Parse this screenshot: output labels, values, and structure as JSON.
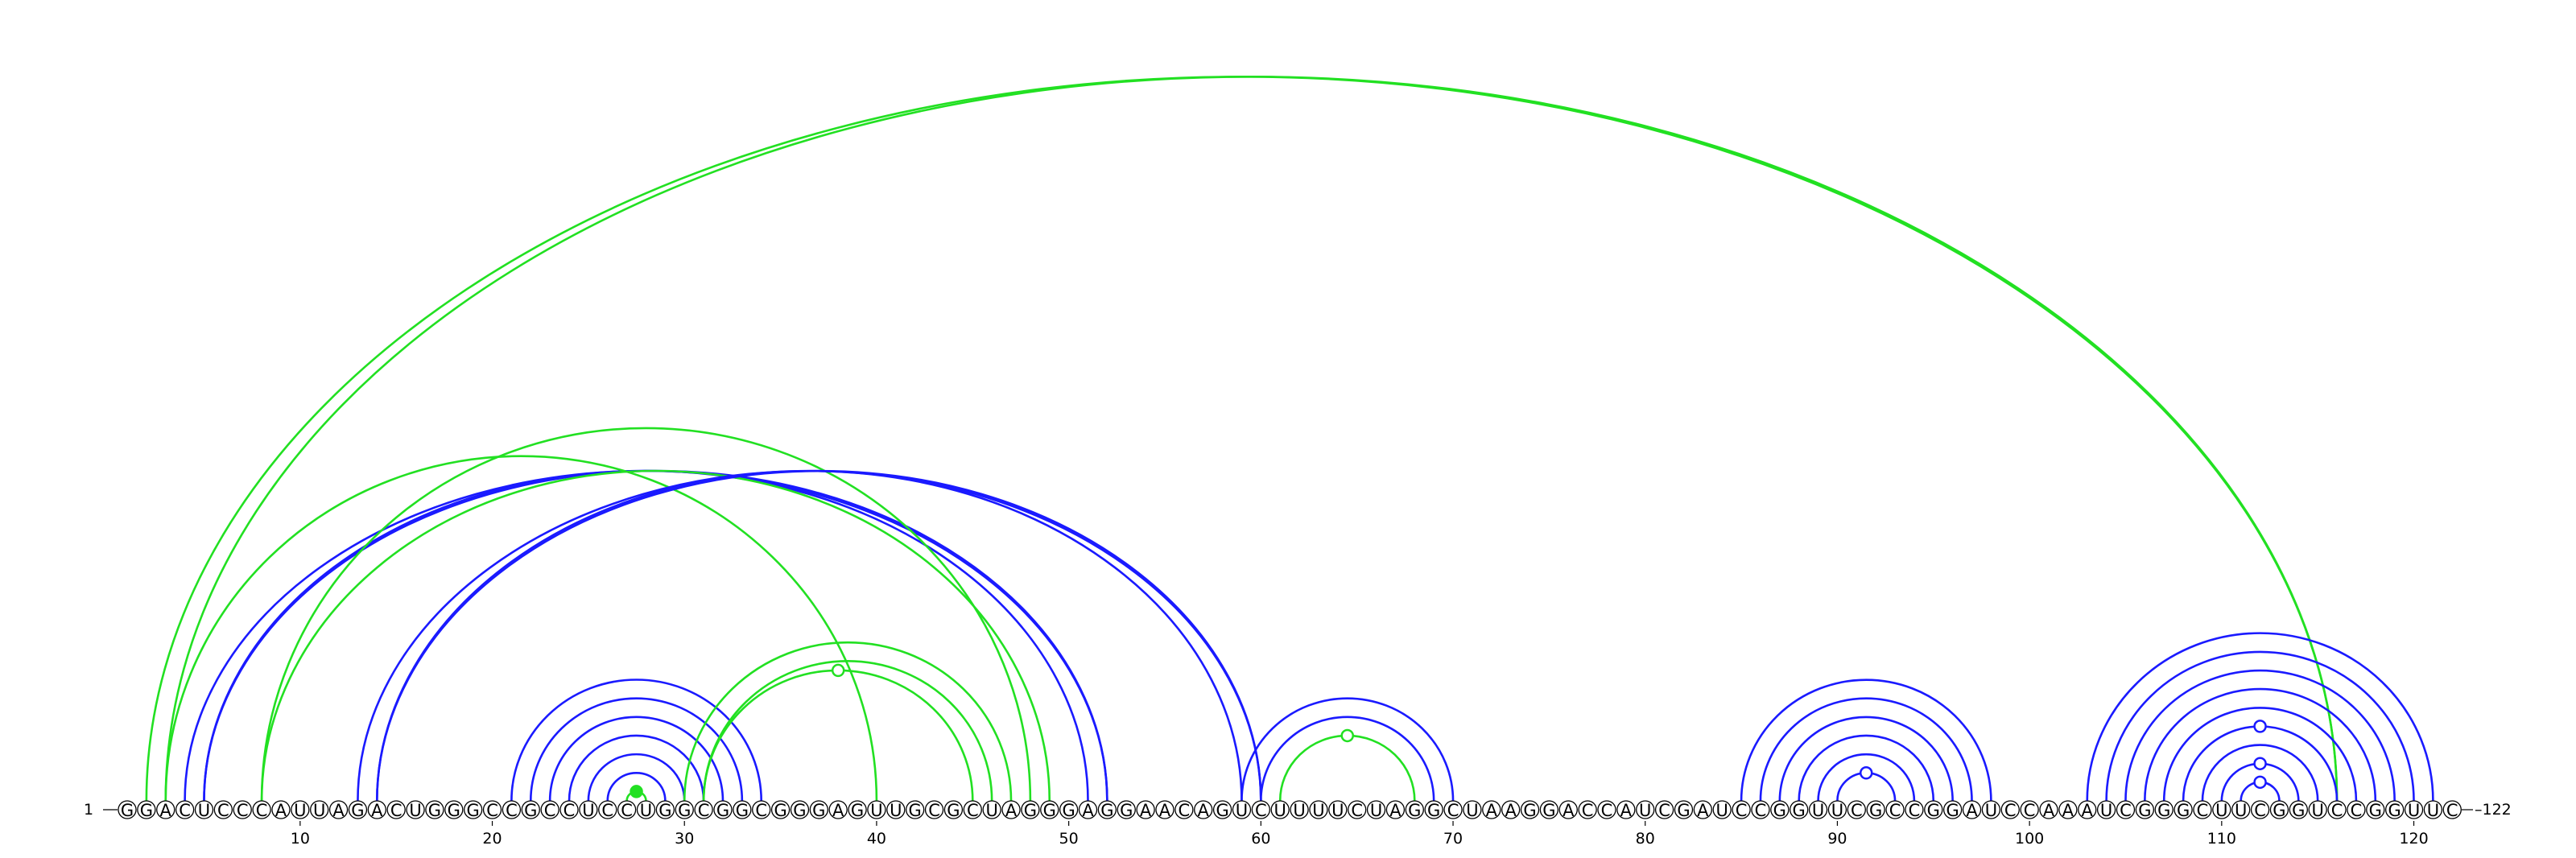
{
  "sequence": "GGACUCCCAUUAGACUGGGCCGCCUCCUGGCGGCGGGAGUUGCGCUAGGGAGGAACAGUCUUUUCUAGGCUAAGGACCAUCGAUCCGGUUCGCCGGAUCCAAAUCGGGCUUCGGUCCGGUUC",
  "start_label": "1",
  "end_label": "122",
  "axis_ticks": [
    10,
    20,
    30,
    40,
    50,
    60,
    70,
    80,
    90,
    100,
    110,
    120
  ],
  "colors": {
    "blue": "#1a1aff",
    "green": "#22e022"
  },
  "arc_groups": [
    {
      "color": "green",
      "pairs": [
        [
          2,
          116
        ],
        [
          3,
          116
        ]
      ]
    },
    {
      "color": "blue",
      "pairs": [
        [
          4,
          52
        ],
        [
          5,
          52
        ],
        [
          5,
          51
        ]
      ]
    },
    {
      "color": "green",
      "pairs": [
        [
          3,
          40
        ]
      ]
    },
    {
      "color": "green",
      "pairs": [
        [
          8,
          49
        ],
        [
          8,
          48
        ]
      ]
    },
    {
      "color": "blue",
      "pairs": [
        [
          13,
          60
        ],
        [
          14,
          60
        ],
        [
          14,
          59
        ]
      ]
    },
    {
      "color": "blue",
      "pairs": [
        [
          21,
          34
        ],
        [
          22,
          33
        ],
        [
          23,
          32
        ],
        [
          24,
          31
        ],
        [
          25,
          30
        ],
        [
          26,
          29
        ]
      ]
    },
    {
      "color": "green",
      "pairs": [
        [
          27,
          28
        ]
      ]
    },
    {
      "color": "green",
      "pairs": [
        [
          30,
          47
        ],
        [
          31,
          46
        ]
      ]
    },
    {
      "color": "green",
      "pairs": [
        [
          31,
          45
        ]
      ]
    },
    {
      "color": "blue",
      "pairs": [
        [
          59,
          70
        ],
        [
          60,
          69
        ]
      ]
    },
    {
      "color": "green",
      "pairs": [
        [
          61,
          68
        ]
      ]
    },
    {
      "color": "blue",
      "pairs": [
        [
          85,
          98
        ],
        [
          86,
          97
        ],
        [
          87,
          96
        ],
        [
          88,
          95
        ],
        [
          89,
          94
        ],
        [
          90,
          93
        ]
      ]
    },
    {
      "color": "blue",
      "pairs": [
        [
          103,
          121
        ],
        [
          104,
          120
        ],
        [
          105,
          119
        ],
        [
          106,
          118
        ],
        [
          107,
          117
        ],
        [
          108,
          116
        ],
        [
          109,
          115
        ],
        [
          110,
          114
        ],
        [
          111,
          113
        ]
      ]
    }
  ],
  "markers": [
    {
      "between": [
        27,
        28
      ],
      "fill": "green",
      "stroke": "green",
      "filled": true
    },
    {
      "between": [
        31,
        45
      ],
      "fill": "white",
      "stroke": "green",
      "filled": false
    },
    {
      "between": [
        61,
        68
      ],
      "fill": "white",
      "stroke": "green",
      "filled": false
    },
    {
      "between": [
        90,
        93
      ],
      "fill": "white",
      "stroke": "blue",
      "filled": false
    },
    {
      "between": [
        110,
        114
      ],
      "fill": "white",
      "stroke": "blue",
      "filled": false
    },
    {
      "between": [
        108,
        116
      ],
      "fill": "white",
      "stroke": "blue",
      "filled": false
    },
    {
      "between": [
        111,
        113
      ],
      "fill": "white",
      "stroke": "blue",
      "filled": false
    }
  ]
}
